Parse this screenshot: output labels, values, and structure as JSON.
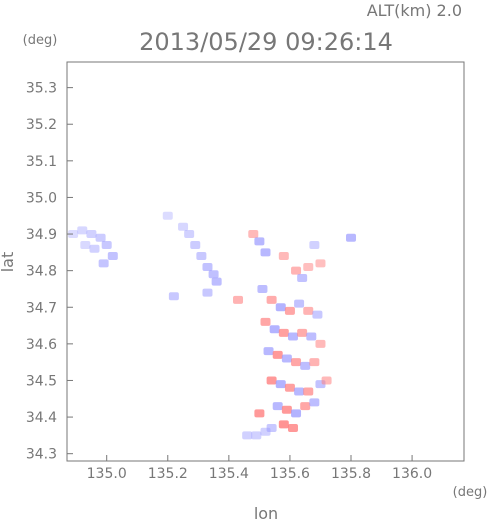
{
  "figure": {
    "header_alt": "ALT(km) 2.0",
    "header_time": "2013/05/29 09:26:14",
    "unit_left": "(deg)",
    "unit_bottom": "(deg)",
    "xlabel": "lon",
    "ylabel": "lat"
  },
  "chart_data": {
    "type": "heatmap",
    "title": "2013/05/29 09:26:14",
    "subtitle": "ALT(km) 2.0",
    "xlabel": "lon",
    "ylabel": "lat",
    "x_unit": "(deg)",
    "y_unit": "(deg)",
    "xlim": [
      134.87,
      136.17
    ],
    "ylim": [
      34.28,
      35.37
    ],
    "x_ticks": [
      135.0,
      135.2,
      135.4,
      135.6,
      135.8,
      136.0
    ],
    "x_tick_labels": [
      "135.0",
      "135.2",
      "135.4",
      "135.6",
      "135.8",
      "136.0"
    ],
    "y_ticks": [
      34.3,
      34.4,
      34.5,
      34.6,
      34.7,
      34.8,
      34.9,
      35.0,
      35.1,
      35.2,
      35.3
    ],
    "y_tick_labels": [
      "34.3",
      "34.4",
      "34.5",
      "34.6",
      "34.7",
      "34.8",
      "34.9",
      "35.0",
      "35.1",
      "35.2",
      "35.3"
    ],
    "grid": false,
    "colors": {
      "frame": "#777777",
      "positive": "#ff8080",
      "negative": "#9a9aff",
      "negative_light": "#c8c8ff"
    },
    "cells": [
      {
        "lon": 134.89,
        "lat": 34.9,
        "sign": "negative",
        "intensity": 0.35
      },
      {
        "lon": 134.92,
        "lat": 34.91,
        "sign": "negative",
        "intensity": 0.4
      },
      {
        "lon": 134.95,
        "lat": 34.9,
        "sign": "negative",
        "intensity": 0.45
      },
      {
        "lon": 134.98,
        "lat": 34.89,
        "sign": "negative",
        "intensity": 0.5
      },
      {
        "lon": 135.0,
        "lat": 34.87,
        "sign": "negative",
        "intensity": 0.55
      },
      {
        "lon": 135.02,
        "lat": 34.84,
        "sign": "negative",
        "intensity": 0.6
      },
      {
        "lon": 134.96,
        "lat": 34.86,
        "sign": "negative",
        "intensity": 0.45
      },
      {
        "lon": 134.93,
        "lat": 34.87,
        "sign": "negative",
        "intensity": 0.38
      },
      {
        "lon": 134.99,
        "lat": 34.82,
        "sign": "negative",
        "intensity": 0.58
      },
      {
        "lon": 135.25,
        "lat": 34.92,
        "sign": "negative",
        "intensity": 0.4
      },
      {
        "lon": 135.27,
        "lat": 34.9,
        "sign": "negative",
        "intensity": 0.45
      },
      {
        "lon": 135.29,
        "lat": 34.87,
        "sign": "negative",
        "intensity": 0.5
      },
      {
        "lon": 135.31,
        "lat": 34.84,
        "sign": "negative",
        "intensity": 0.55
      },
      {
        "lon": 135.33,
        "lat": 34.81,
        "sign": "negative",
        "intensity": 0.6
      },
      {
        "lon": 135.35,
        "lat": 34.79,
        "sign": "negative",
        "intensity": 0.62
      },
      {
        "lon": 135.36,
        "lat": 34.77,
        "sign": "negative",
        "intensity": 0.65
      },
      {
        "lon": 135.33,
        "lat": 34.74,
        "sign": "negative",
        "intensity": 0.55
      },
      {
        "lon": 135.22,
        "lat": 34.73,
        "sign": "negative",
        "intensity": 0.55
      },
      {
        "lon": 135.2,
        "lat": 34.95,
        "sign": "negative",
        "intensity": 0.35
      },
      {
        "lon": 135.48,
        "lat": 34.9,
        "sign": "positive",
        "intensity": 0.55
      },
      {
        "lon": 135.5,
        "lat": 34.88,
        "sign": "negative",
        "intensity": 0.7
      },
      {
        "lon": 135.52,
        "lat": 34.85,
        "sign": "negative",
        "intensity": 0.7
      },
      {
        "lon": 135.58,
        "lat": 34.84,
        "sign": "positive",
        "intensity": 0.55
      },
      {
        "lon": 135.62,
        "lat": 34.8,
        "sign": "positive",
        "intensity": 0.6
      },
      {
        "lon": 135.64,
        "lat": 34.78,
        "sign": "negative",
        "intensity": 0.6
      },
      {
        "lon": 135.66,
        "lat": 34.81,
        "sign": "positive",
        "intensity": 0.5
      },
      {
        "lon": 135.68,
        "lat": 34.87,
        "sign": "negative",
        "intensity": 0.45
      },
      {
        "lon": 135.7,
        "lat": 34.82,
        "sign": "positive",
        "intensity": 0.5
      },
      {
        "lon": 135.8,
        "lat": 34.89,
        "sign": "negative",
        "intensity": 0.7
      },
      {
        "lon": 135.51,
        "lat": 34.75,
        "sign": "negative",
        "intensity": 0.65
      },
      {
        "lon": 135.54,
        "lat": 34.72,
        "sign": "positive",
        "intensity": 0.65
      },
      {
        "lon": 135.57,
        "lat": 34.7,
        "sign": "negative",
        "intensity": 0.75
      },
      {
        "lon": 135.6,
        "lat": 34.69,
        "sign": "positive",
        "intensity": 0.7
      },
      {
        "lon": 135.63,
        "lat": 34.71,
        "sign": "negative",
        "intensity": 0.6
      },
      {
        "lon": 135.66,
        "lat": 34.69,
        "sign": "positive",
        "intensity": 0.6
      },
      {
        "lon": 135.69,
        "lat": 34.68,
        "sign": "negative",
        "intensity": 0.55
      },
      {
        "lon": 135.52,
        "lat": 34.66,
        "sign": "positive",
        "intensity": 0.7
      },
      {
        "lon": 135.55,
        "lat": 34.64,
        "sign": "negative",
        "intensity": 0.75
      },
      {
        "lon": 135.58,
        "lat": 34.63,
        "sign": "positive",
        "intensity": 0.75
      },
      {
        "lon": 135.61,
        "lat": 34.62,
        "sign": "negative",
        "intensity": 0.7
      },
      {
        "lon": 135.64,
        "lat": 34.63,
        "sign": "positive",
        "intensity": 0.65
      },
      {
        "lon": 135.67,
        "lat": 34.62,
        "sign": "negative",
        "intensity": 0.65
      },
      {
        "lon": 135.7,
        "lat": 34.6,
        "sign": "positive",
        "intensity": 0.55
      },
      {
        "lon": 135.53,
        "lat": 34.58,
        "sign": "negative",
        "intensity": 0.7
      },
      {
        "lon": 135.56,
        "lat": 34.57,
        "sign": "positive",
        "intensity": 0.8
      },
      {
        "lon": 135.59,
        "lat": 34.56,
        "sign": "negative",
        "intensity": 0.7
      },
      {
        "lon": 135.62,
        "lat": 34.55,
        "sign": "positive",
        "intensity": 0.7
      },
      {
        "lon": 135.65,
        "lat": 34.54,
        "sign": "negative",
        "intensity": 0.65
      },
      {
        "lon": 135.68,
        "lat": 34.55,
        "sign": "positive",
        "intensity": 0.6
      },
      {
        "lon": 135.54,
        "lat": 34.5,
        "sign": "positive",
        "intensity": 0.8
      },
      {
        "lon": 135.57,
        "lat": 34.49,
        "sign": "negative",
        "intensity": 0.75
      },
      {
        "lon": 135.6,
        "lat": 34.48,
        "sign": "positive",
        "intensity": 0.75
      },
      {
        "lon": 135.63,
        "lat": 34.47,
        "sign": "negative",
        "intensity": 0.7
      },
      {
        "lon": 135.66,
        "lat": 34.47,
        "sign": "positive",
        "intensity": 0.7
      },
      {
        "lon": 135.7,
        "lat": 34.49,
        "sign": "negative",
        "intensity": 0.6
      },
      {
        "lon": 135.72,
        "lat": 34.5,
        "sign": "positive",
        "intensity": 0.55
      },
      {
        "lon": 135.56,
        "lat": 34.43,
        "sign": "negative",
        "intensity": 0.7
      },
      {
        "lon": 135.59,
        "lat": 34.42,
        "sign": "positive",
        "intensity": 0.8
      },
      {
        "lon": 135.62,
        "lat": 34.41,
        "sign": "negative",
        "intensity": 0.75
      },
      {
        "lon": 135.65,
        "lat": 34.43,
        "sign": "positive",
        "intensity": 0.7
      },
      {
        "lon": 135.68,
        "lat": 34.44,
        "sign": "negative",
        "intensity": 0.65
      },
      {
        "lon": 135.5,
        "lat": 34.41,
        "sign": "positive",
        "intensity": 0.8
      },
      {
        "lon": 135.58,
        "lat": 34.38,
        "sign": "positive",
        "intensity": 0.85
      },
      {
        "lon": 135.61,
        "lat": 34.37,
        "sign": "positive",
        "intensity": 0.8
      },
      {
        "lon": 135.54,
        "lat": 34.37,
        "sign": "negative",
        "intensity": 0.55
      },
      {
        "lon": 135.46,
        "lat": 34.35,
        "sign": "negative",
        "intensity": 0.45
      },
      {
        "lon": 135.49,
        "lat": 34.35,
        "sign": "negative",
        "intensity": 0.45
      },
      {
        "lon": 135.52,
        "lat": 34.36,
        "sign": "negative",
        "intensity": 0.45
      },
      {
        "lon": 135.43,
        "lat": 34.72,
        "sign": "positive",
        "intensity": 0.6
      }
    ]
  }
}
